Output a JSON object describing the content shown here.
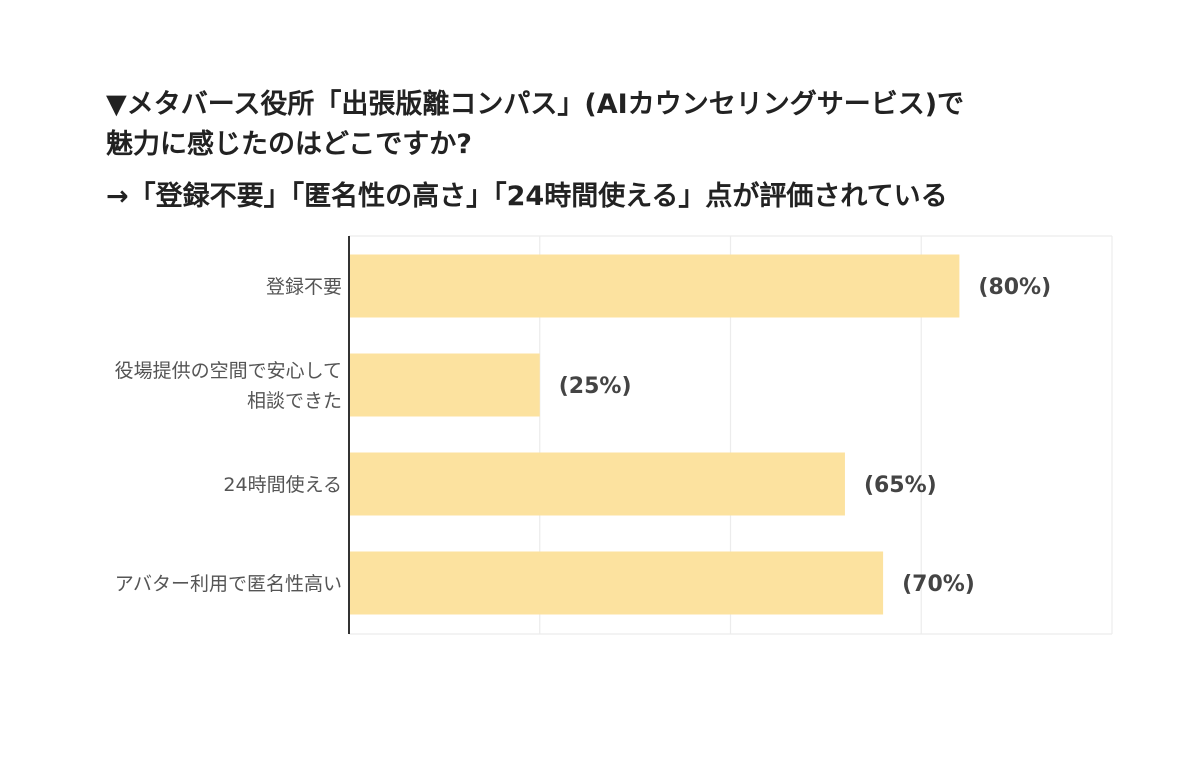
{
  "heading": {
    "line1": "▼メタバース役所「出張版離コンパス」(AIカウンセリングサービス)で",
    "line2": "魅力に感じたのはどこですか?",
    "line3": "→「登録不要」「匿名性の高さ」「24時間使える」点が評価されている"
  },
  "colors": {
    "bar": "#fce29f",
    "axis": "#333333",
    "grid": "#ececec"
  },
  "chart_data": {
    "type": "bar",
    "orientation": "horizontal",
    "categories": [
      [
        "登録不要"
      ],
      [
        "役場提供の空間で安心して",
        "相談できた"
      ],
      [
        "24時間使える"
      ],
      [
        "アバター利用で匿名性高い"
      ]
    ],
    "values": [
      80,
      25,
      65,
      70
    ],
    "value_labels": [
      "(80%)",
      "(25%)",
      "(65%)",
      "(70%)"
    ],
    "xlim": [
      0,
      100
    ],
    "grid": true
  }
}
